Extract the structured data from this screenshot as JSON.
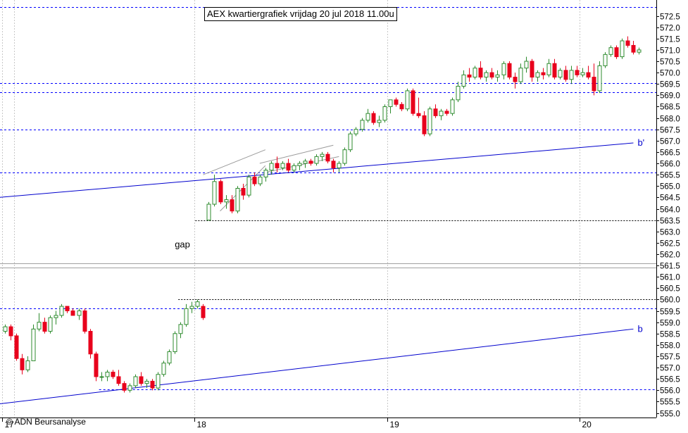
{
  "title": "AEX kwartiergrafiek vrijdag 20 jul 2018 11.00u",
  "copyright": "© ADN Beursanalyse",
  "chart_data": {
    "type": "candlestick",
    "title": "AEX kwartiergrafiek vrijdag 20 jul 2018 11.00u",
    "ylim": [
      554.8,
      573.2
    ],
    "y_ticks": [
      "555.0",
      "555.5",
      "556.0",
      "556.5",
      "557.0",
      "557.5",
      "558.0",
      "558.5",
      "559.0",
      "559.5",
      "560.0",
      "560.5",
      "561.0",
      "561.5",
      "562.0",
      "562.5",
      "563.0",
      "563.5",
      "564.0",
      "564.5",
      "565.0",
      "565.5",
      "566.0",
      "566.5",
      "567.0",
      "567.5",
      "568.0",
      "568.5",
      "569.0",
      "569.5",
      "570.0",
      "570.5",
      "571.0",
      "571.5",
      "572.0",
      "572.5"
    ],
    "x_ticks": [
      {
        "label": "17",
        "index": 0
      },
      {
        "label": "18",
        "index": 34
      },
      {
        "label": "19",
        "index": 68
      },
      {
        "label": "20",
        "index": 102
      }
    ],
    "grid": true,
    "colors": {
      "up": "#2e8b2e",
      "down": "#e8001c",
      "grid": "#c8c8c8",
      "dotted_line": "#000000",
      "blue_line": "#0000ff",
      "trend_line": "#0000cd"
    },
    "candles": [
      {
        "o": 558.6,
        "h": 558.9,
        "l": 558.5,
        "c": 558.8
      },
      {
        "o": 558.8,
        "h": 558.9,
        "l": 558.2,
        "c": 558.4
      },
      {
        "o": 558.4,
        "h": 558.5,
        "l": 557.3,
        "c": 557.4
      },
      {
        "o": 557.4,
        "h": 557.6,
        "l": 556.7,
        "c": 556.9
      },
      {
        "o": 556.9,
        "h": 557.5,
        "l": 556.8,
        "c": 557.3
      },
      {
        "o": 557.3,
        "h": 558.9,
        "l": 557.3,
        "c": 558.7
      },
      {
        "o": 558.7,
        "h": 559.4,
        "l": 558.6,
        "c": 559.0
      },
      {
        "o": 559.0,
        "h": 559.2,
        "l": 558.5,
        "c": 558.6
      },
      {
        "o": 558.6,
        "h": 559.3,
        "l": 558.5,
        "c": 559.2
      },
      {
        "o": 559.2,
        "h": 559.5,
        "l": 558.9,
        "c": 559.3
      },
      {
        "o": 559.3,
        "h": 559.8,
        "l": 559.2,
        "c": 559.7
      },
      {
        "o": 559.7,
        "h": 559.7,
        "l": 559.4,
        "c": 559.5
      },
      {
        "o": 559.5,
        "h": 559.6,
        "l": 559.3,
        "c": 559.3
      },
      {
        "o": 559.3,
        "h": 559.6,
        "l": 559.1,
        "c": 559.5
      },
      {
        "o": 559.5,
        "h": 559.6,
        "l": 558.5,
        "c": 558.6
      },
      {
        "o": 558.6,
        "h": 558.7,
        "l": 557.4,
        "c": 557.6
      },
      {
        "o": 557.6,
        "h": 557.7,
        "l": 556.4,
        "c": 556.6
      },
      {
        "o": 556.6,
        "h": 556.8,
        "l": 556.4,
        "c": 556.6
      },
      {
        "o": 556.6,
        "h": 556.9,
        "l": 556.4,
        "c": 556.8
      },
      {
        "o": 556.8,
        "h": 556.9,
        "l": 556.5,
        "c": 556.6
      },
      {
        "o": 556.6,
        "h": 556.9,
        "l": 556.2,
        "c": 556.3
      },
      {
        "o": 556.3,
        "h": 556.4,
        "l": 555.9,
        "c": 556.0
      },
      {
        "o": 556.0,
        "h": 556.3,
        "l": 555.9,
        "c": 556.2
      },
      {
        "o": 556.2,
        "h": 556.7,
        "l": 556.1,
        "c": 556.6
      },
      {
        "o": 556.6,
        "h": 556.8,
        "l": 556.2,
        "c": 556.3
      },
      {
        "o": 556.3,
        "h": 556.5,
        "l": 556.1,
        "c": 556.4
      },
      {
        "o": 556.4,
        "h": 556.5,
        "l": 556.0,
        "c": 556.1
      },
      {
        "o": 556.1,
        "h": 556.8,
        "l": 556.0,
        "c": 556.7
      },
      {
        "o": 556.7,
        "h": 557.3,
        "l": 556.6,
        "c": 557.2
      },
      {
        "o": 557.2,
        "h": 557.8,
        "l": 557.1,
        "c": 557.7
      },
      {
        "o": 557.7,
        "h": 558.6,
        "l": 557.6,
        "c": 558.5
      },
      {
        "o": 558.5,
        "h": 559.0,
        "l": 558.3,
        "c": 558.9
      },
      {
        "o": 558.9,
        "h": 559.8,
        "l": 558.8,
        "c": 559.6
      },
      {
        "o": 559.6,
        "h": 559.9,
        "l": 559.4,
        "c": 559.7
      },
      {
        "o": 559.7,
        "h": 560.0,
        "l": 559.6,
        "c": 559.9
      },
      {
        "o": 559.7,
        "h": 559.8,
        "l": 559.1,
        "c": 559.2
      },
      {
        "o": 563.5,
        "h": 564.3,
        "l": 563.5,
        "c": 564.2
      },
      {
        "o": 564.2,
        "h": 565.5,
        "l": 564.1,
        "c": 565.2
      },
      {
        "o": 565.2,
        "h": 565.3,
        "l": 564.2,
        "c": 564.3
      },
      {
        "o": 564.3,
        "h": 564.6,
        "l": 564.0,
        "c": 564.4
      },
      {
        "o": 564.4,
        "h": 564.6,
        "l": 563.8,
        "c": 563.9
      },
      {
        "o": 563.9,
        "h": 565.0,
        "l": 563.8,
        "c": 564.9
      },
      {
        "o": 564.9,
        "h": 565.1,
        "l": 564.4,
        "c": 564.6
      },
      {
        "o": 564.6,
        "h": 565.5,
        "l": 564.5,
        "c": 565.4
      },
      {
        "o": 565.4,
        "h": 565.6,
        "l": 565.0,
        "c": 565.1
      },
      {
        "o": 565.1,
        "h": 565.5,
        "l": 565.0,
        "c": 565.4
      },
      {
        "o": 565.4,
        "h": 565.8,
        "l": 565.2,
        "c": 565.7
      },
      {
        "o": 565.7,
        "h": 566.1,
        "l": 565.5,
        "c": 566.0
      },
      {
        "o": 566.0,
        "h": 566.3,
        "l": 565.6,
        "c": 565.8
      },
      {
        "o": 565.8,
        "h": 566.1,
        "l": 565.7,
        "c": 566.0
      },
      {
        "o": 566.0,
        "h": 566.2,
        "l": 565.6,
        "c": 565.7
      },
      {
        "o": 565.7,
        "h": 566.0,
        "l": 565.6,
        "c": 565.9
      },
      {
        "o": 565.9,
        "h": 566.1,
        "l": 565.7,
        "c": 566.0
      },
      {
        "o": 566.0,
        "h": 566.2,
        "l": 565.8,
        "c": 566.1
      },
      {
        "o": 566.1,
        "h": 566.2,
        "l": 565.9,
        "c": 566.0
      },
      {
        "o": 566.0,
        "h": 566.4,
        "l": 565.9,
        "c": 566.3
      },
      {
        "o": 566.3,
        "h": 566.5,
        "l": 566.1,
        "c": 566.4
      },
      {
        "o": 566.4,
        "h": 566.5,
        "l": 566.0,
        "c": 566.1
      },
      {
        "o": 566.1,
        "h": 566.2,
        "l": 565.6,
        "c": 565.8
      },
      {
        "o": 565.8,
        "h": 566.1,
        "l": 565.6,
        "c": 566.0
      },
      {
        "o": 566.0,
        "h": 566.7,
        "l": 565.9,
        "c": 566.6
      },
      {
        "o": 566.6,
        "h": 567.4,
        "l": 566.5,
        "c": 567.3
      },
      {
        "o": 567.3,
        "h": 567.6,
        "l": 567.2,
        "c": 567.5
      },
      {
        "o": 567.5,
        "h": 568.0,
        "l": 567.4,
        "c": 567.9
      },
      {
        "o": 567.9,
        "h": 568.4,
        "l": 567.8,
        "c": 568.2
      },
      {
        "o": 568.2,
        "h": 568.3,
        "l": 567.7,
        "c": 567.8
      },
      {
        "o": 567.8,
        "h": 568.1,
        "l": 567.6,
        "c": 567.9
      },
      {
        "o": 567.9,
        "h": 568.6,
        "l": 567.8,
        "c": 568.5
      },
      {
        "o": 568.5,
        "h": 568.8,
        "l": 568.2,
        "c": 568.8
      },
      {
        "o": 568.8,
        "h": 568.9,
        "l": 568.5,
        "c": 568.6
      },
      {
        "o": 568.6,
        "h": 568.7,
        "l": 568.3,
        "c": 568.4
      },
      {
        "o": 568.4,
        "h": 569.3,
        "l": 568.3,
        "c": 569.2
      },
      {
        "o": 569.2,
        "h": 569.3,
        "l": 568.1,
        "c": 568.2
      },
      {
        "o": 568.2,
        "h": 568.9,
        "l": 568.0,
        "c": 568.1
      },
      {
        "o": 568.1,
        "h": 568.3,
        "l": 567.2,
        "c": 567.3
      },
      {
        "o": 567.3,
        "h": 568.5,
        "l": 567.2,
        "c": 568.4
      },
      {
        "o": 568.4,
        "h": 568.6,
        "l": 568.0,
        "c": 568.1
      },
      {
        "o": 568.1,
        "h": 568.4,
        "l": 567.9,
        "c": 568.3
      },
      {
        "o": 568.3,
        "h": 568.4,
        "l": 568.1,
        "c": 568.2
      },
      {
        "o": 568.2,
        "h": 568.9,
        "l": 568.1,
        "c": 568.8
      },
      {
        "o": 568.8,
        "h": 569.6,
        "l": 568.7,
        "c": 569.4
      },
      {
        "o": 569.4,
        "h": 570.1,
        "l": 569.3,
        "c": 569.9
      },
      {
        "o": 569.9,
        "h": 570.2,
        "l": 569.6,
        "c": 569.8
      },
      {
        "o": 569.8,
        "h": 570.3,
        "l": 569.7,
        "c": 570.2
      },
      {
        "o": 570.2,
        "h": 570.5,
        "l": 569.7,
        "c": 569.8
      },
      {
        "o": 569.8,
        "h": 570.1,
        "l": 569.6,
        "c": 570.0
      },
      {
        "o": 570.0,
        "h": 570.2,
        "l": 569.7,
        "c": 569.8
      },
      {
        "o": 569.8,
        "h": 570.1,
        "l": 569.6,
        "c": 569.9
      },
      {
        "o": 569.9,
        "h": 570.5,
        "l": 569.7,
        "c": 570.4
      },
      {
        "o": 570.4,
        "h": 570.5,
        "l": 569.7,
        "c": 569.8
      },
      {
        "o": 569.8,
        "h": 570.0,
        "l": 569.3,
        "c": 569.6
      },
      {
        "o": 569.6,
        "h": 570.4,
        "l": 569.5,
        "c": 570.2
      },
      {
        "o": 570.2,
        "h": 570.7,
        "l": 570.0,
        "c": 570.5
      },
      {
        "o": 570.5,
        "h": 570.6,
        "l": 569.6,
        "c": 569.8
      },
      {
        "o": 569.8,
        "h": 570.1,
        "l": 569.6,
        "c": 570.0
      },
      {
        "o": 570.0,
        "h": 570.2,
        "l": 569.7,
        "c": 569.9
      },
      {
        "o": 569.9,
        "h": 570.6,
        "l": 569.8,
        "c": 570.4
      },
      {
        "o": 570.4,
        "h": 570.6,
        "l": 569.7,
        "c": 569.8
      },
      {
        "o": 569.8,
        "h": 570.2,
        "l": 569.7,
        "c": 570.1
      },
      {
        "o": 570.1,
        "h": 570.3,
        "l": 569.6,
        "c": 569.7
      },
      {
        "o": 569.7,
        "h": 570.3,
        "l": 569.5,
        "c": 570.1
      },
      {
        "o": 570.1,
        "h": 570.3,
        "l": 569.8,
        "c": 569.9
      },
      {
        "o": 569.9,
        "h": 570.2,
        "l": 569.8,
        "c": 570.0
      },
      {
        "o": 570.0,
        "h": 570.3,
        "l": 569.7,
        "c": 569.8
      },
      {
        "o": 569.8,
        "h": 570.4,
        "l": 569.0,
        "c": 569.2
      },
      {
        "o": 569.2,
        "h": 570.5,
        "l": 569.1,
        "c": 570.3
      },
      {
        "o": 570.3,
        "h": 570.9,
        "l": 570.2,
        "c": 570.8
      },
      {
        "o": 570.8,
        "h": 571.2,
        "l": 570.7,
        "c": 571.1
      },
      {
        "o": 571.1,
        "h": 571.2,
        "l": 570.6,
        "c": 570.7
      },
      {
        "o": 570.7,
        "h": 571.5,
        "l": 570.6,
        "c": 571.4
      },
      {
        "o": 571.4,
        "h": 571.6,
        "l": 571.1,
        "c": 571.2
      },
      {
        "o": 571.2,
        "h": 571.4,
        "l": 570.8,
        "c": 570.9
      },
      {
        "o": 570.9,
        "h": 571.1,
        "l": 570.8,
        "c": 571.0
      }
    ],
    "horizontal_lines": [
      {
        "value": 572.9,
        "style": "blue-dotted"
      },
      {
        "value": 569.55,
        "style": "blue-dotted"
      },
      {
        "value": 569.15,
        "style": "blue-dotted"
      },
      {
        "value": 567.5,
        "style": "blue-dotted"
      },
      {
        "value": 565.6,
        "style": "blue-dotted"
      },
      {
        "value": 563.5,
        "style": "black-dotted",
        "from_index": 34
      },
      {
        "value": 561.6,
        "style": "gray"
      },
      {
        "value": 561.4,
        "style": "gray"
      },
      {
        "value": 560.0,
        "style": "black-dotted",
        "from_index": 31
      },
      {
        "value": 559.6,
        "style": "blue-dotted"
      },
      {
        "value": 556.05,
        "style": "blue-dotted",
        "from_index": 17
      }
    ],
    "trend_lines": [
      {
        "label": "b'",
        "x0_index": -1,
        "y0": 564.5,
        "x1_index": 111,
        "y1": 566.9
      },
      {
        "label": "b",
        "x0_index": -1,
        "y0": 555.4,
        "x1_index": 111,
        "y1": 558.7
      }
    ],
    "channel_lines": [
      {
        "x0_index": 35,
        "y0": 565.5,
        "x1_index": 46,
        "y1": 566.6
      },
      {
        "x0_index": 38,
        "y0": 563.9,
        "x1_index": 46,
        "y1": 565.9
      },
      {
        "x0_index": 45,
        "y0": 566.0,
        "x1_index": 58,
        "y1": 566.8
      },
      {
        "x0_index": 46,
        "y0": 565.6,
        "x1_index": 59,
        "y1": 566.3
      }
    ],
    "annotations": [
      {
        "text": "gap",
        "x_index": 30,
        "y": 562.3
      }
    ]
  }
}
